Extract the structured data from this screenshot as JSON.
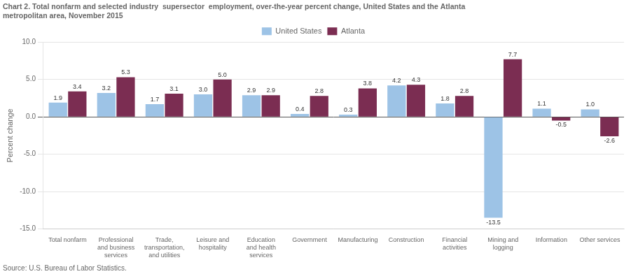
{
  "chart_data": {
    "type": "bar",
    "title": [
      "Chart 2. Total nonfarm and selected industry  supersector  employment, over-the-year percent change, United States and the Atlanta",
      "metropolitan area, November 2015"
    ],
    "ylabel": "Percent change",
    "source": "Source: U.S. Bureau of Labor Statistics.",
    "categories": [
      "Total nonfarm",
      "Professional\nand business\nservices",
      "Trade,\ntransportation,\nand utilities",
      "Leisure and\nhospitality",
      "Education\nand health\nservices",
      "Government",
      "Manufacturing",
      "Construction",
      "Financial\nactivities",
      "Mining and\nlogging",
      "Information",
      "Other services"
    ],
    "series": [
      {
        "name": "United States",
        "color": "#9dc3e6",
        "values": [
          1.9,
          3.2,
          1.7,
          3.0,
          2.9,
          0.4,
          0.3,
          4.2,
          1.8,
          -13.5,
          1.1,
          1.0
        ],
        "value_labels": [
          "1.9",
          "3.2",
          "1.7",
          "3.0",
          "2.9",
          "0.4",
          "0.3",
          "4.2",
          "1.8",
          "-13.5",
          "1.1",
          "1.0"
        ]
      },
      {
        "name": "Atlanta",
        "color": "#7b2d52",
        "values": [
          3.4,
          5.3,
          3.1,
          5.0,
          2.9,
          2.8,
          3.8,
          4.3,
          2.8,
          7.7,
          -0.5,
          -2.6
        ],
        "value_labels": [
          "3.4",
          "5.3",
          "3.1",
          "5.0",
          "2.9",
          "2.8",
          "3.8",
          "4.3",
          "2.8",
          "7.7",
          "-0.5",
          "-2.6"
        ]
      }
    ],
    "ylim": [
      -15.0,
      10.0
    ],
    "yticks": [
      {
        "value": -15.0,
        "label": "-15.0"
      },
      {
        "value": -10.0,
        "label": "-10.0"
      },
      {
        "value": -5.0,
        "label": "-5.0"
      },
      {
        "value": 0.0,
        "label": "0.0"
      },
      {
        "value": 5.0,
        "label": "5.0"
      },
      {
        "value": 10.0,
        "label": "10.0"
      }
    ],
    "grid": true,
    "legend": "top",
    "data_labels": true
  }
}
